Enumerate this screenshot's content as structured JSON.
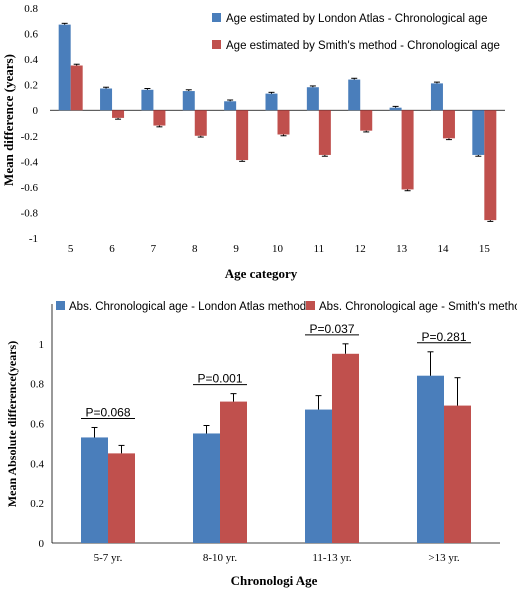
{
  "colors": {
    "blue": "#4a7ebb",
    "red": "#c0504d"
  },
  "chart_data": [
    {
      "type": "bar",
      "ylabel": "Mean difference (years)",
      "xlabel": "Age category",
      "ylim": [
        -1,
        0.8
      ],
      "ytick_labels": [
        "0.8",
        "0.6",
        "0.4",
        "0.2",
        "0",
        "-0.2",
        "-0.4",
        "-0.6",
        "-0.8",
        "-1"
      ],
      "ytick_values": [
        0.8,
        0.6,
        0.4,
        0.2,
        0,
        -0.2,
        -0.4,
        -0.6,
        -0.8,
        -1
      ],
      "categories": [
        "5",
        "6",
        "7",
        "8",
        "9",
        "10",
        "11",
        "12",
        "13",
        "14",
        "15"
      ],
      "legend_position": "top-right",
      "series": [
        {
          "name": "Age estimated by London Atlas - Chronological age",
          "values": [
            0.67,
            0.17,
            0.16,
            0.15,
            0.07,
            0.13,
            0.18,
            0.24,
            0.02,
            0.21,
            -0.35
          ],
          "errors": [
            0.01,
            0.01,
            0.01,
            0.01,
            0.01,
            0.01,
            0.01,
            0.01,
            0.01,
            0.01,
            0.01
          ]
        },
        {
          "name": "Age estimated by Smith's method - Chronological age",
          "values": [
            0.35,
            -0.06,
            -0.12,
            -0.2,
            -0.39,
            -0.19,
            -0.35,
            -0.16,
            -0.62,
            -0.22,
            -0.86
          ],
          "errors": [
            0.01,
            0.01,
            0.01,
            0.01,
            0.01,
            0.01,
            0.01,
            0.01,
            0.01,
            0.01,
            0.01
          ]
        }
      ]
    },
    {
      "type": "bar",
      "ylabel": "Mean Absolute difference(years)",
      "xlabel": "Chronologi Age",
      "ylim": [
        0,
        1.2
      ],
      "ytick_labels": [
        "0",
        "0.2",
        "0.4",
        "0.6",
        "0.8",
        "1"
      ],
      "ytick_values": [
        0,
        0.2,
        0.4,
        0.6,
        0.8,
        1
      ],
      "categories": [
        "5-7 yr.",
        "8-10 yr.",
        "11-13 yr.",
        ">13 yr."
      ],
      "legend_position": "top",
      "series": [
        {
          "name": "Abs. Chronological age - London Atlas method",
          "values": [
            0.53,
            0.55,
            0.67,
            0.84
          ],
          "errors": [
            0.05,
            0.04,
            0.07,
            0.12
          ]
        },
        {
          "name": "Abs. Chronological age - Smith's method",
          "values": [
            0.45,
            0.71,
            0.95,
            0.69
          ],
          "errors": [
            0.04,
            0.04,
            0.05,
            0.14
          ]
        }
      ],
      "annotations": [
        "P=0.068",
        "P=0.001",
        "P=0.037",
        "P=0.281"
      ]
    }
  ]
}
